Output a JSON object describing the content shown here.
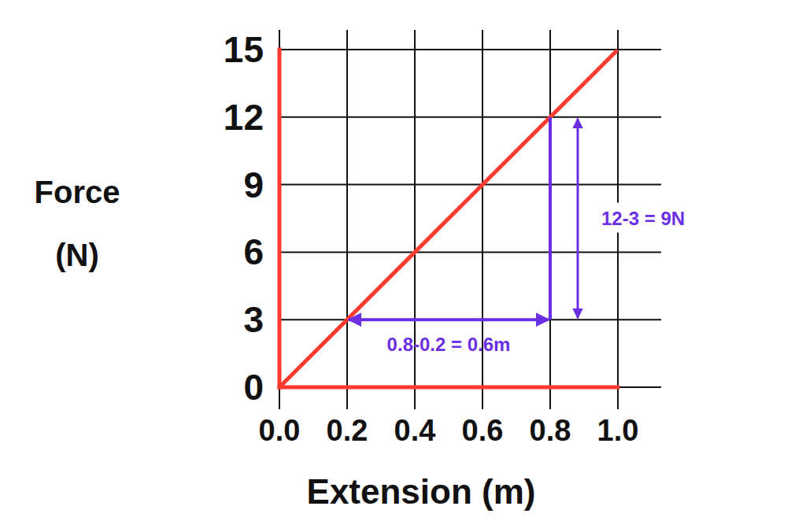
{
  "chart_data": {
    "type": "line",
    "x_label": "Extension (m)",
    "y_label": "Force (N)",
    "x": [
      0,
      1
    ],
    "values": [
      0,
      15
    ],
    "color": "#ff3b30",
    "xlim": [
      0,
      1
    ],
    "xticks": [
      {
        "value": 0,
        "label": "0.0"
      },
      0.2,
      0.4,
      0.6,
      0.8,
      {
        "value": 1,
        "label": "1.0"
      }
    ],
    "ylim": [
      0,
      15
    ],
    "yticks": [
      0,
      3,
      6,
      9,
      12,
      15
    ],
    "grid": true,
    "annotations": [
      {
        "text": "0.8-0.2 = 0.6m",
        "x": [
          0.2,
          0.8
        ],
        "y": [
          3,
          3
        ],
        "color": "#6b2fe3"
      },
      {
        "text": "12-3 = 9N",
        "x": [
          0.8,
          0.8
        ],
        "y": [
          3,
          12
        ],
        "color": "#6b2fe3"
      }
    ]
  }
}
